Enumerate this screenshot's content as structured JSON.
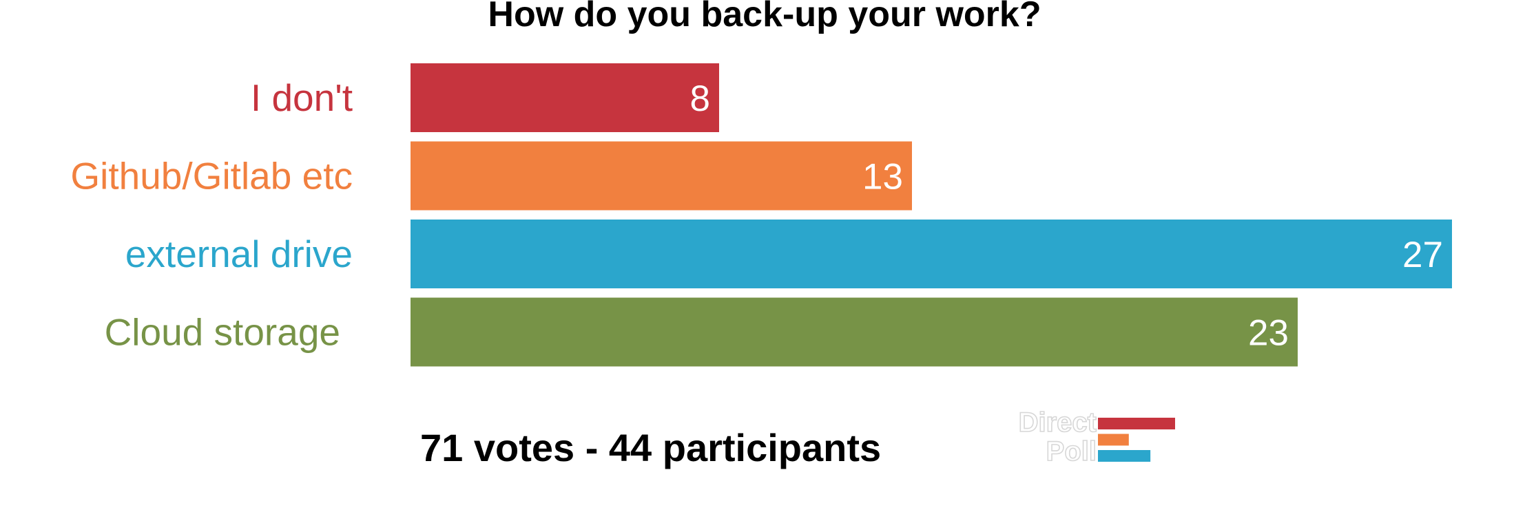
{
  "chart_data": {
    "type": "bar",
    "orientation": "horizontal",
    "title": "How do you back-up your work?",
    "categories": [
      "I don't",
      "Github/Gitlab etc",
      "external drive",
      "Cloud storage"
    ],
    "values": [
      8,
      13,
      27,
      23
    ],
    "colors": [
      "#c6343e",
      "#f1803f",
      "#2ba6cc",
      "#779347"
    ],
    "xlim": [
      0,
      27
    ],
    "grid": false,
    "data_labels": true
  },
  "footer": {
    "summary": "71 votes - 44 participants"
  },
  "logo": {
    "line1": "Direct",
    "line2": "Poll",
    "bar_colors": [
      "#c6343e",
      "#f1803f",
      "#2ba6cc"
    ],
    "bar_levels": [
      1.0,
      0.4,
      0.68
    ]
  }
}
